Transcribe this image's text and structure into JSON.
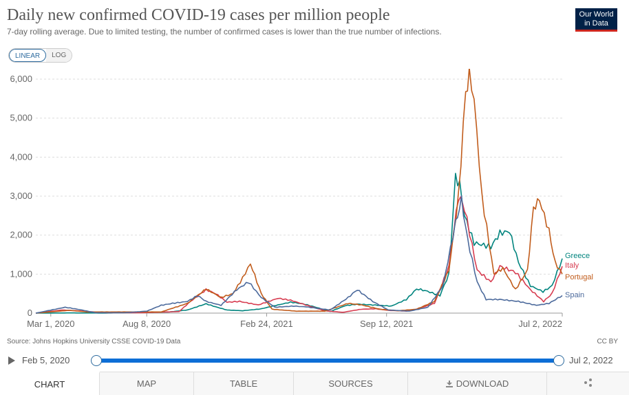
{
  "header": {
    "title": "Daily new confirmed COVID-19 cases per million people",
    "subtitle": "7-day rolling average. Due to limited testing, the number of confirmed cases is lower than the true number of infections."
  },
  "logo": {
    "line1": "Our World",
    "line2": "in Data",
    "bg_color": "#002147",
    "accent_color": "#ce261e"
  },
  "scale_toggle": {
    "options": [
      "LINEAR",
      "LOG"
    ],
    "selected": "LINEAR"
  },
  "chart_data": {
    "type": "line",
    "title": "Daily new confirmed COVID-19 cases per million people",
    "y_axis": {
      "min": 0,
      "max": 6000,
      "ticks": [
        0,
        1000,
        2000,
        3000,
        4000,
        5000,
        6000
      ],
      "tick_labels": [
        "0",
        "1,000",
        "2,000",
        "3,000",
        "4,000",
        "5,000",
        "6,000"
      ],
      "grid": true
    },
    "x_axis": {
      "min": "2020-02-05",
      "max": "2022-07-02",
      "ticks": [
        "2020-03-01",
        "2020-08-08",
        "2021-02-24",
        "2021-09-12",
        "2022-07-02"
      ],
      "tick_labels": [
        "Mar 1, 2020",
        "Aug 8, 2020",
        "Feb 24, 2021",
        "Sep 12, 2021",
        "Jul 2, 2022"
      ]
    },
    "legend": "inline-right",
    "series": [
      {
        "name": "Greece",
        "color": "#00847e",
        "points": [
          [
            "2020-02-05",
            0
          ],
          [
            "2020-04-01",
            5
          ],
          [
            "2020-06-01",
            2
          ],
          [
            "2020-08-01",
            15
          ],
          [
            "2020-09-15",
            30
          ],
          [
            "2020-10-15",
            80
          ],
          [
            "2020-11-15",
            240
          ],
          [
            "2020-12-01",
            160
          ],
          [
            "2020-12-20",
            80
          ],
          [
            "2021-01-15",
            60
          ],
          [
            "2021-02-15",
            110
          ],
          [
            "2021-03-15",
            210
          ],
          [
            "2021-04-05",
            280
          ],
          [
            "2021-04-25",
            240
          ],
          [
            "2021-05-15",
            160
          ],
          [
            "2021-06-10",
            40
          ],
          [
            "2021-07-05",
            190
          ],
          [
            "2021-07-25",
            230
          ],
          [
            "2021-08-20",
            210
          ],
          [
            "2021-09-20",
            180
          ],
          [
            "2021-10-15",
            350
          ],
          [
            "2021-11-01",
            620
          ],
          [
            "2021-11-15",
            580
          ],
          [
            "2021-12-10",
            450
          ],
          [
            "2021-12-25",
            1000
          ],
          [
            "2022-01-05",
            3500
          ],
          [
            "2022-01-12",
            3300
          ],
          [
            "2022-01-20",
            2500
          ],
          [
            "2022-02-05",
            1800
          ],
          [
            "2022-03-05",
            1700
          ],
          [
            "2022-03-20",
            2050
          ],
          [
            "2022-04-05",
            2100
          ],
          [
            "2022-04-20",
            1300
          ],
          [
            "2022-05-10",
            700
          ],
          [
            "2022-05-31",
            550
          ],
          [
            "2022-06-15",
            700
          ],
          [
            "2022-07-02",
            1400
          ]
        ]
      },
      {
        "name": "Italy",
        "color": "#d73c50",
        "points": [
          [
            "2020-02-05",
            0
          ],
          [
            "2020-03-20",
            80
          ],
          [
            "2020-04-15",
            60
          ],
          [
            "2020-06-01",
            10
          ],
          [
            "2020-08-01",
            10
          ],
          [
            "2020-10-01",
            40
          ],
          [
            "2020-10-20",
            300
          ],
          [
            "2020-11-15",
            600
          ],
          [
            "2020-12-01",
            500
          ],
          [
            "2020-12-20",
            280
          ],
          [
            "2021-01-10",
            300
          ],
          [
            "2021-02-10",
            210
          ],
          [
            "2021-03-15",
            380
          ],
          [
            "2021-04-05",
            330
          ],
          [
            "2021-04-30",
            210
          ],
          [
            "2021-06-01",
            60
          ],
          [
            "2021-07-01",
            20
          ],
          [
            "2021-08-01",
            100
          ],
          [
            "2021-08-25",
            110
          ],
          [
            "2021-09-15",
            70
          ],
          [
            "2021-10-15",
            50
          ],
          [
            "2021-11-01",
            100
          ],
          [
            "2021-12-01",
            250
          ],
          [
            "2021-12-25",
            1200
          ],
          [
            "2022-01-10",
            3000
          ],
          [
            "2022-01-20",
            2700
          ],
          [
            "2022-02-10",
            1100
          ],
          [
            "2022-03-05",
            800
          ],
          [
            "2022-03-20",
            1200
          ],
          [
            "2022-04-15",
            1050
          ],
          [
            "2022-05-10",
            600
          ],
          [
            "2022-06-01",
            300
          ],
          [
            "2022-06-15",
            500
          ],
          [
            "2022-07-02",
            1200
          ]
        ]
      },
      {
        "name": "Portugal",
        "color": "#c15c1b",
        "points": [
          [
            "2020-02-05",
            0
          ],
          [
            "2020-04-01",
            70
          ],
          [
            "2020-05-01",
            30
          ],
          [
            "2020-07-01",
            30
          ],
          [
            "2020-09-01",
            30
          ],
          [
            "2020-10-15",
            250
          ],
          [
            "2020-11-15",
            620
          ],
          [
            "2020-12-10",
            400
          ],
          [
            "2020-12-30",
            500
          ],
          [
            "2021-01-15",
            900
          ],
          [
            "2021-01-28",
            1270
          ],
          [
            "2021-02-15",
            500
          ],
          [
            "2021-03-05",
            100
          ],
          [
            "2021-04-15",
            50
          ],
          [
            "2021-06-01",
            50
          ],
          [
            "2021-07-10",
            250
          ],
          [
            "2021-08-01",
            210
          ],
          [
            "2021-09-01",
            100
          ],
          [
            "2021-10-01",
            60
          ],
          [
            "2021-11-01",
            100
          ],
          [
            "2021-12-01",
            300
          ],
          [
            "2021-12-25",
            1100
          ],
          [
            "2022-01-10",
            3000
          ],
          [
            "2022-01-22",
            5700
          ],
          [
            "2022-01-28",
            6100
          ],
          [
            "2022-02-05",
            5500
          ],
          [
            "2022-02-18",
            3000
          ],
          [
            "2022-03-10",
            1000
          ],
          [
            "2022-03-25",
            1150
          ],
          [
            "2022-04-15",
            600
          ],
          [
            "2022-05-05",
            1100
          ],
          [
            "2022-05-15",
            2700
          ],
          [
            "2022-05-25",
            2900
          ],
          [
            "2022-06-10",
            2100
          ],
          [
            "2022-06-20",
            1300
          ],
          [
            "2022-07-02",
            1000
          ]
        ]
      },
      {
        "name": "Spain",
        "color": "#4c6a9c",
        "points": [
          [
            "2020-02-05",
            0
          ],
          [
            "2020-03-25",
            150
          ],
          [
            "2020-04-15",
            100
          ],
          [
            "2020-05-15",
            10
          ],
          [
            "2020-07-01",
            10
          ],
          [
            "2020-08-08",
            50
          ],
          [
            "2020-09-01",
            200
          ],
          [
            "2020-09-20",
            250
          ],
          [
            "2020-10-15",
            300
          ],
          [
            "2020-11-01",
            450
          ],
          [
            "2020-11-15",
            300
          ],
          [
            "2020-12-10",
            200
          ],
          [
            "2021-01-05",
            600
          ],
          [
            "2021-01-25",
            800
          ],
          [
            "2021-02-15",
            400
          ],
          [
            "2021-03-10",
            150
          ],
          [
            "2021-04-10",
            180
          ],
          [
            "2021-05-01",
            160
          ],
          [
            "2021-06-10",
            80
          ],
          [
            "2021-07-10",
            400
          ],
          [
            "2021-07-25",
            600
          ],
          [
            "2021-08-20",
            300
          ],
          [
            "2021-09-15",
            80
          ],
          [
            "2021-10-20",
            50
          ],
          [
            "2021-11-20",
            150
          ],
          [
            "2021-12-15",
            700
          ],
          [
            "2022-01-05",
            2300
          ],
          [
            "2022-01-15",
            2900
          ],
          [
            "2022-01-25",
            1900
          ],
          [
            "2022-02-10",
            800
          ],
          [
            "2022-02-25",
            350
          ],
          [
            "2022-03-20",
            350
          ],
          [
            "2022-04-20",
            300
          ],
          [
            "2022-05-20",
            200
          ],
          [
            "2022-06-10",
            250
          ],
          [
            "2022-07-02",
            450
          ]
        ]
      }
    ]
  },
  "footer": {
    "source": "Source: Johns Hopkins University CSSE COVID-19 Data",
    "license": "CC BY"
  },
  "timeline": {
    "start_label": "Feb 5, 2020",
    "end_label": "Jul 2, 2022",
    "start_fraction": 0,
    "end_fraction": 1
  },
  "tabs": [
    {
      "label": "CHART",
      "active": true
    },
    {
      "label": "MAP"
    },
    {
      "label": "TABLE"
    },
    {
      "label": "SOURCES"
    },
    {
      "label": "DOWNLOAD"
    },
    {
      "label": ""
    }
  ]
}
